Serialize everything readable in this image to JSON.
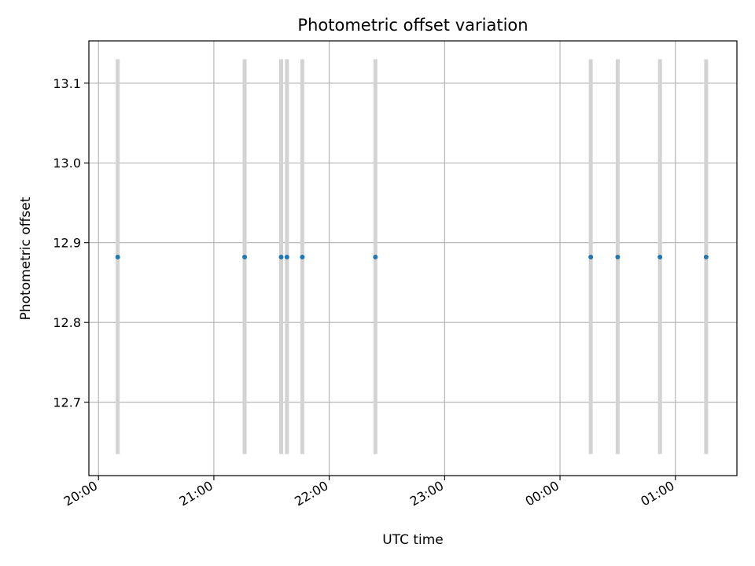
{
  "chart_data": {
    "type": "scatter",
    "title": "Photometric offset variation",
    "xlabel": "UTC time",
    "ylabel": "Photometric offset",
    "grid": true,
    "xlim": [
      "19:55",
      "01:32"
    ],
    "ylim": [
      12.608,
      13.153
    ],
    "x_ticks": [
      "20:00",
      "21:00",
      "22:00",
      "23:00",
      "00:00",
      "01:00"
    ],
    "y_ticks": [
      "12.7",
      "12.8",
      "12.9",
      "13.0",
      "13.1"
    ],
    "x": [
      "20:10",
      "21:16",
      "21:35",
      "21:38",
      "21:46",
      "22:24",
      "00:16",
      "00:30",
      "00:52",
      "01:16"
    ],
    "y": [
      12.882,
      12.882,
      12.882,
      12.882,
      12.882,
      12.882,
      12.882,
      12.882,
      12.882,
      12.882
    ],
    "error_low": [
      12.635,
      12.635,
      12.635,
      12.635,
      12.635,
      12.635,
      12.635,
      12.635,
      12.635,
      12.635
    ],
    "error_high": [
      13.13,
      13.13,
      13.13,
      13.13,
      13.13,
      13.13,
      13.13,
      13.13,
      13.13,
      13.13
    ],
    "colors": {
      "point": "#1f77b4",
      "errorbar": "#d3d3d3",
      "grid": "#b0b0b0",
      "axes": "#000000"
    }
  }
}
